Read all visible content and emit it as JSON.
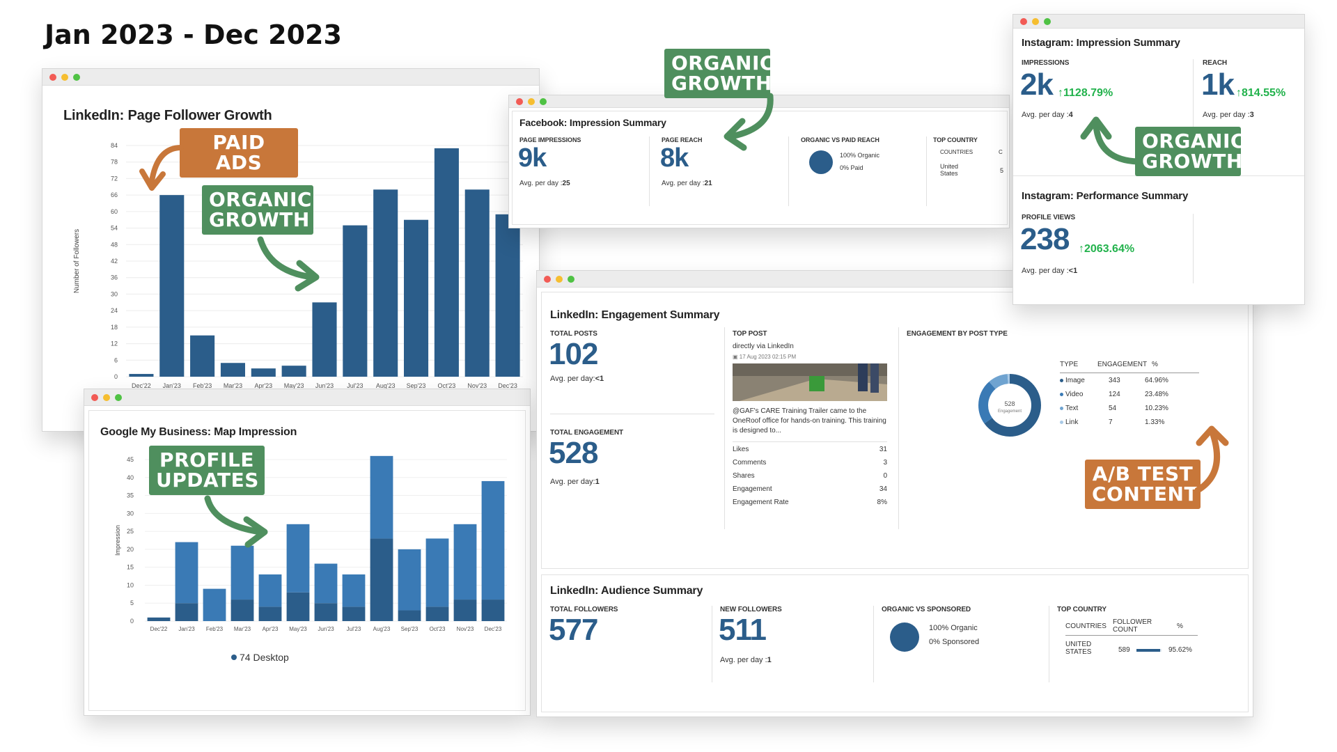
{
  "header": {
    "date_range": "Jan 2023 - Dec 2023"
  },
  "linkedin_followers": {
    "title": "LinkedIn: Page Follower Growth",
    "chart_data": {
      "type": "bar",
      "title": "LinkedIn: Page Follower Growth",
      "ylabel": "Number of Followers",
      "categories": [
        "Dec'22",
        "Jan'23",
        "Feb'23",
        "Mar'23",
        "Apr'23",
        "May'23",
        "Jun'23",
        "Jul'23",
        "Aug'23",
        "Sep'23",
        "Oct'23",
        "Nov'23",
        "Dec'23"
      ],
      "values": [
        1,
        66,
        15,
        5,
        3,
        4,
        27,
        55,
        68,
        57,
        83,
        68,
        59
      ],
      "ylim": [
        0,
        84
      ],
      "yticks": [
        "84",
        "78",
        "72",
        "66",
        "60",
        "54",
        "48",
        "42",
        "36",
        "30",
        "24",
        "18",
        "12",
        "6",
        "0"
      ],
      "color": "#2b5d8a"
    }
  },
  "gmb": {
    "title": "Google My Business: Map Impression",
    "chart_data": {
      "type": "bar",
      "title": "Google My Business: Map Impression",
      "ylabel": "Impression",
      "categories": [
        "Dec'22",
        "Jan'23",
        "Feb'23",
        "Mar'23",
        "Apr'23",
        "May'23",
        "Jun'23",
        "Jul'23",
        "Aug'23",
        "Sep'23",
        "Oct'23",
        "Nov'23",
        "Dec'23"
      ],
      "series": [
        {
          "values": [
            1,
            5,
            0,
            6,
            4,
            8,
            5,
            4,
            23,
            3,
            4,
            6,
            6
          ],
          "color": "#2b5d8a"
        },
        {
          "values": [
            0,
            17,
            9,
            15,
            9,
            19,
            11,
            9,
            23,
            17,
            19,
            21,
            33
          ],
          "color": "#3a7ab5"
        }
      ],
      "ylim": [
        0,
        45
      ],
      "yticks": [
        "45",
        "40",
        "35",
        "30",
        "25",
        "20",
        "15",
        "10",
        "5",
        "0"
      ],
      "legend": "74 Desktop"
    }
  },
  "facebook": {
    "title": "Facebook: Impression Summary",
    "page_impressions": {
      "label": "PAGE IMPRESSIONS",
      "value": "9k",
      "avg_prefix": "Avg. per day :",
      "avg": "25"
    },
    "page_reach": {
      "label": "PAGE REACH",
      "value": "8k",
      "avg_prefix": "Avg. per day :",
      "avg": "21"
    },
    "organic_vs_paid": {
      "label": "ORGANIC VS PAID REACH",
      "organic": "100% Organic",
      "paid": "0% Paid"
    },
    "top_country": {
      "label": "TOP COUNTRY",
      "col1": "COUNTRIES",
      "col2": "C",
      "country": "United States",
      "count": "5"
    }
  },
  "instagram_impressions": {
    "title": "Instagram: Impression Summary",
    "impressions": {
      "label": "IMPRESSIONS",
      "value": "2k",
      "growth": "1128.79%",
      "avg_prefix": "Avg. per day :",
      "avg": "4"
    },
    "reach": {
      "label": "REACH",
      "value": "1k",
      "growth": "814.55%",
      "avg_prefix": "Avg. per day :",
      "avg": "3"
    }
  },
  "instagram_performance": {
    "title": "Instagram: Performance Summary",
    "profile_views": {
      "label": "PROFILE VIEWS",
      "value": "238",
      "growth": "2063.64%",
      "avg_prefix": "Avg. per day :",
      "avg": "<1"
    }
  },
  "engagement": {
    "title": "LinkedIn: Engagement Summary",
    "total_posts": {
      "label": "TOTAL POSTS",
      "value": "102",
      "avg_prefix": "Avg. per day:",
      "avg": "<1"
    },
    "total_engagement": {
      "label": "TOTAL ENGAGEMENT",
      "value": "528",
      "avg_prefix": "Avg. per day:",
      "avg": "1"
    },
    "top_post": {
      "label": "TOP POST",
      "source": "directly via LinkedIn",
      "date": "17 Aug 2023 02:15 PM",
      "text": "@GAF's CARE Training Trailer came to the OneRoof office for hands-on training. This training is designed to...",
      "stats": [
        {
          "name": "Likes",
          "value": "31"
        },
        {
          "name": "Comments",
          "value": "3"
        },
        {
          "name": "Shares",
          "value": "0"
        },
        {
          "name": "Engagement",
          "value": "34"
        },
        {
          "name": "Engagement Rate",
          "value": "8%"
        }
      ]
    },
    "by_type": {
      "label": "ENGAGEMENT BY POST TYPE",
      "donut_center_value": "528",
      "donut_center_label": "Engagement",
      "headers": [
        "TYPE",
        "ENGAGEMENT",
        "%"
      ],
      "rows": [
        {
          "type": "Image",
          "engagement": "343",
          "pct": "64.96%",
          "fraction": 0.6496,
          "color": "#2b5d8a"
        },
        {
          "type": "Video",
          "engagement": "124",
          "pct": "23.48%",
          "fraction": 0.2348,
          "color": "#3a7ab5"
        },
        {
          "type": "Text",
          "engagement": "54",
          "pct": "10.23%",
          "fraction": 0.1023,
          "color": "#6fa3d0"
        },
        {
          "type": "Link",
          "engagement": "7",
          "pct": "1.33%",
          "fraction": 0.0133,
          "color": "#a9c9e6"
        }
      ]
    }
  },
  "audience": {
    "title": "LinkedIn: Audience Summary",
    "total_followers": {
      "label": "TOTAL FOLLOWERS",
      "value": "577"
    },
    "new_followers": {
      "label": "NEW FOLLOWERS",
      "value": "511",
      "avg_prefix": "Avg. per day :",
      "avg": "1"
    },
    "organic_vs_sponsored": {
      "label": "ORGANIC VS SPONSORED",
      "organic": "100% Organic",
      "sponsored": "0% Sponsored"
    },
    "top_country": {
      "label": "TOP COUNTRY",
      "col1": "COUNTRIES",
      "col2": "FOLLOWER COUNT",
      "col3": "%",
      "country": "UNITED STATES",
      "count": "589",
      "pct": "95.62%",
      "fraction": 0.9562
    }
  },
  "callouts": {
    "paid_ads": "PAID ADS",
    "organic_growth": "ORGANIC GROWTH",
    "profile_updates": "PROFILE UPDATES",
    "ab_test": "A/B TEST CONTENT"
  },
  "colors": {
    "primary": "#2b5d8a",
    "secondary": "#3a7ab5",
    "green_tag": "#4f8f5e",
    "orange_tag": "#c8773a",
    "growth": "#22b24c"
  }
}
